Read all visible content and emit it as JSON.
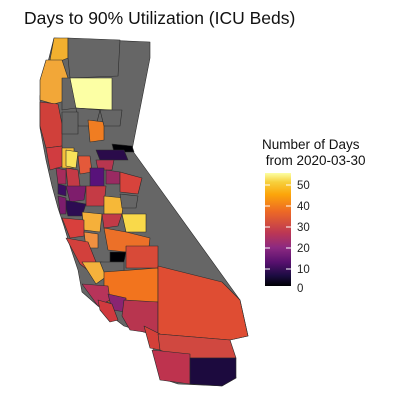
{
  "title": "Days to 90% Utilization (ICU Beds)",
  "legend": {
    "title_line1": "Number of Days",
    "title_line2": " from 2020-03-30",
    "ticks": [
      "50",
      "40",
      "30",
      "20",
      "10",
      "0"
    ],
    "scale_min": 0,
    "scale_max": 57,
    "palette": "inferno",
    "na_color": "#666666"
  },
  "colors": {
    "na": "#666666",
    "border": "#2b2b2b",
    "background": "#ffffff"
  }
}
